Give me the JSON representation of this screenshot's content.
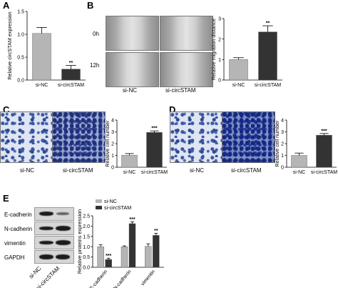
{
  "panels": {
    "A": "A",
    "B": "B",
    "C": "C",
    "D": "D",
    "E": "E"
  },
  "wound_rows": [
    "0h",
    "12h"
  ],
  "image_groups": [
    "si-NC",
    "si-circSTAM"
  ],
  "western_blot_proteins": [
    "E-cadherin",
    "N-cadherin",
    "vimentin",
    "GAPDH"
  ],
  "chart_data": [
    {
      "id": "A",
      "type": "bar",
      "categories": [
        "si-NC",
        "si-circSTAM"
      ],
      "values": [
        1.02,
        0.24
      ],
      "errors": [
        0.13,
        0.08
      ],
      "colors": [
        "#b5b5b5",
        "#333333"
      ],
      "ylabel": "Relative circSTAM expression",
      "ylim": [
        0,
        1.5
      ],
      "yticks": [
        "0.0",
        "0.5",
        "1.0",
        "1.5"
      ],
      "annotations": [
        "",
        "**"
      ]
    },
    {
      "id": "B",
      "type": "bar",
      "categories": [
        "si-NC",
        "si-circSTAM"
      ],
      "values": [
        1.0,
        2.35
      ],
      "errors": [
        0.09,
        0.3
      ],
      "colors": [
        "#b5b5b5",
        "#333333"
      ],
      "ylabel": "Relative migration distance",
      "ylim": [
        0,
        3
      ],
      "yticks": [
        "0",
        "1",
        "2",
        "3"
      ],
      "annotations": [
        "",
        "**"
      ]
    },
    {
      "id": "C",
      "type": "bar",
      "categories": [
        "si-NC",
        "si-circSTAM"
      ],
      "values": [
        1.02,
        2.95
      ],
      "errors": [
        0.14,
        0.13
      ],
      "colors": [
        "#b5b5b5",
        "#333333"
      ],
      "ylabel": "Relative cell number",
      "ylim": [
        0,
        4
      ],
      "yticks": [
        "0",
        "1",
        "2",
        "3",
        "4"
      ],
      "annotations": [
        "",
        "***"
      ]
    },
    {
      "id": "D",
      "type": "bar",
      "categories": [
        "si-NC",
        "si-circSTAM"
      ],
      "values": [
        1.0,
        2.72
      ],
      "errors": [
        0.2,
        0.14
      ],
      "colors": [
        "#b5b5b5",
        "#333333"
      ],
      "ylabel": "Relative cell number",
      "ylim": [
        0,
        4
      ],
      "yticks": [
        "0",
        "1",
        "2",
        "3",
        "4"
      ],
      "annotations": [
        "",
        "***"
      ]
    },
    {
      "id": "E",
      "type": "bar",
      "categories": [
        "E-cadherin",
        "N-cadherin",
        "vimentin"
      ],
      "series": [
        {
          "name": "si-NC",
          "values": [
            1.0,
            1.0,
            1.02
          ],
          "errors": [
            0.09,
            0.04,
            0.12
          ],
          "color": "#b5b5b5"
        },
        {
          "name": "si-circSTAM",
          "values": [
            0.38,
            2.12,
            1.55
          ],
          "errors": [
            0.06,
            0.09,
            0.1
          ],
          "color": "#333333"
        }
      ],
      "ylabel": "Relative proteins expression",
      "ylim": [
        0,
        2.5
      ],
      "yticks": [
        "0.0",
        "0.5",
        "1.0",
        "1.5",
        "2.0",
        "2.5"
      ],
      "annotations": [
        [
          "",
          "***"
        ],
        [
          "",
          "***"
        ],
        [
          "",
          "**"
        ]
      ],
      "legend": "top-left"
    }
  ]
}
